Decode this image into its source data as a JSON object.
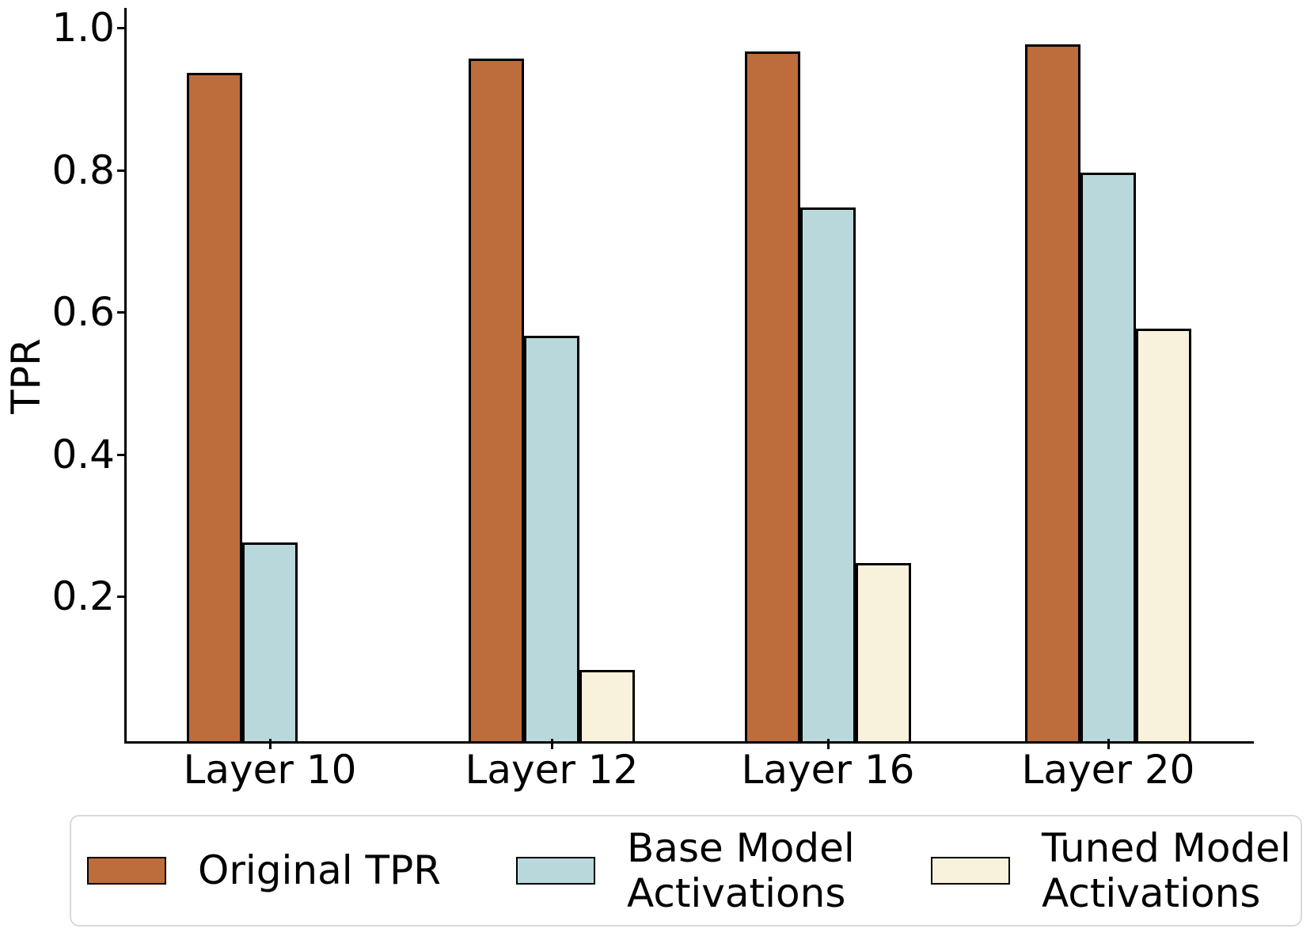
{
  "chart_data": {
    "type": "bar",
    "title": "",
    "ylabel": "TPR",
    "xlabel": "",
    "categories": [
      "Layer 10",
      "Layer 12",
      "Layer 16",
      "Layer 20"
    ],
    "series": [
      {
        "name": "Original TPR",
        "label_lines": [
          "Original TPR"
        ],
        "color": "#bc6d3b",
        "values": [
          0.94,
          0.96,
          0.97,
          0.98
        ]
      },
      {
        "name": "Base Model Activations",
        "label_lines": [
          "Base Model",
          "Activations"
        ],
        "color": "#b9d8dc",
        "values": [
          0.28,
          0.57,
          0.75,
          0.8
        ]
      },
      {
        "name": "Tuned Model Activations",
        "label_lines": [
          "Tuned Model",
          "Activations"
        ],
        "color": "#f8f1db",
        "values": [
          0.0,
          0.1,
          0.25,
          0.58
        ]
      }
    ],
    "yticks": [
      0.2,
      0.4,
      0.6,
      0.8,
      1.0
    ],
    "ylim": [
      0,
      1.0
    ],
    "grid": false,
    "bar_edge_color": "#000000",
    "axis_color": "#000000",
    "legend_position": "bottom",
    "legend_border_color": "#d9d9d9",
    "background_color": "#ffffff"
  }
}
